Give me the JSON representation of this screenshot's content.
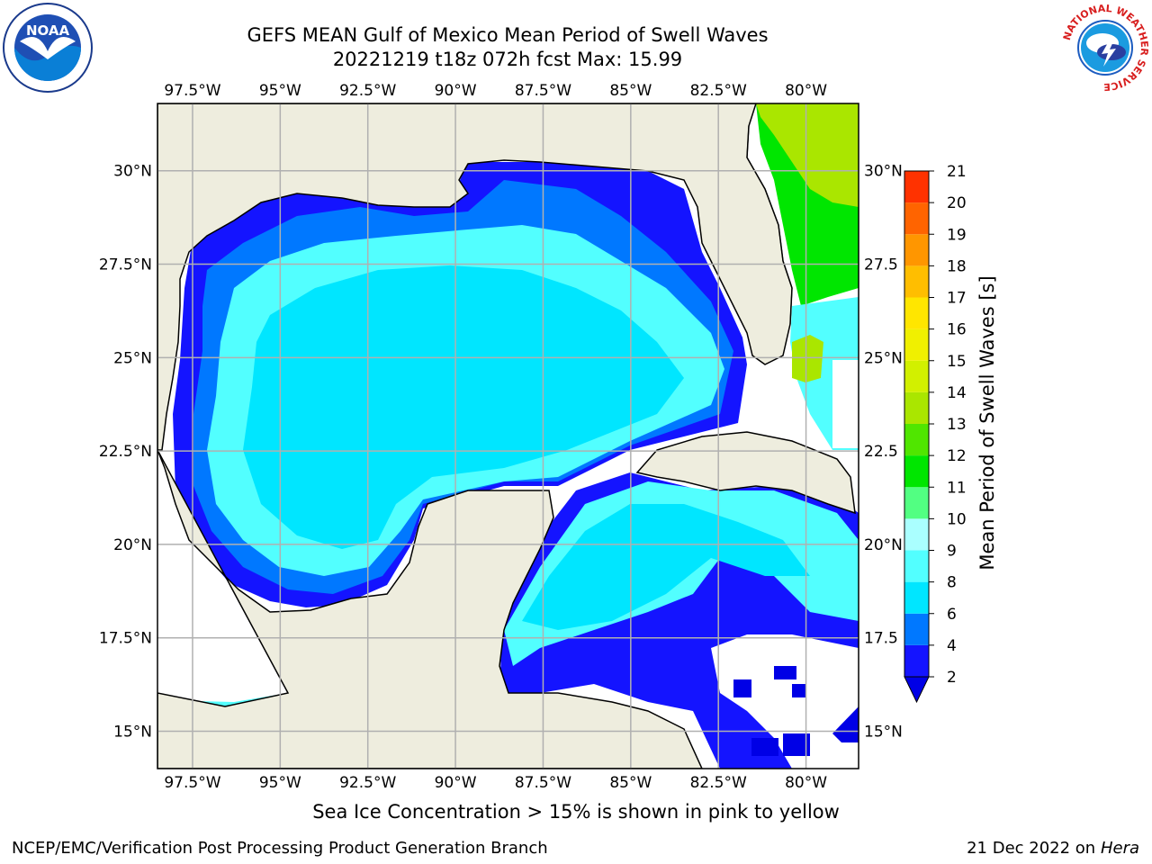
{
  "title": {
    "line1": "GEFS MEAN Gulf of Mexico Mean Period of Swell Waves",
    "line2": "20221219 t18z 072h fcst   Max: 15.99"
  },
  "logos": {
    "left": "noaa-logo",
    "right": "national-weather-service-logo",
    "right_ring_text": "NATIONAL WEATHER SERVICE"
  },
  "map": {
    "projection": "lat-lon",
    "lon_range": [
      -98.5,
      -78.5
    ],
    "lat_range": [
      14.0,
      31.8
    ],
    "lon_ticks": [
      {
        "value": -97.5,
        "label": "97.5°W"
      },
      {
        "value": -95,
        "label": "95°W"
      },
      {
        "value": -92.5,
        "label": "92.5°W"
      },
      {
        "value": -90,
        "label": "90°W"
      },
      {
        "value": -87.5,
        "label": "87.5°W"
      },
      {
        "value": -85,
        "label": "85°W"
      },
      {
        "value": -82.5,
        "label": "82.5°W"
      },
      {
        "value": -80,
        "label": "80°W"
      }
    ],
    "lat_ticks_left": [
      {
        "value": 30,
        "label": "30°N"
      },
      {
        "value": 27.5,
        "label": "27.5°N"
      },
      {
        "value": 25,
        "label": "25°N"
      },
      {
        "value": 22.5,
        "label": "22.5°N"
      },
      {
        "value": 20,
        "label": "20°N"
      },
      {
        "value": 17.5,
        "label": "17.5°N"
      },
      {
        "value": 15,
        "label": "15°N"
      }
    ],
    "lat_ticks_right": [
      {
        "value": 30,
        "label": "30°N"
      },
      {
        "value": 27.5,
        "label": "27.5"
      },
      {
        "value": 25,
        "label": "25°N"
      },
      {
        "value": 22.5,
        "label": "22.5"
      },
      {
        "value": 20,
        "label": "20°N"
      },
      {
        "value": 17.5,
        "label": "17.5"
      },
      {
        "value": 15,
        "label": "15°N"
      }
    ],
    "gridlines": true,
    "colors": {
      "land": "#eeedde",
      "no_data": "#ffffff",
      "grid": "#b0b0b0",
      "coast": "#000000"
    }
  },
  "colorbar": {
    "label": "Mean Period of Swell Waves [s]",
    "ticks": [
      "2",
      "4",
      "6",
      "8",
      "9",
      "10",
      "11",
      "12",
      "13",
      "14",
      "15",
      "16",
      "17",
      "18",
      "19",
      "20",
      "21"
    ],
    "extend": "min",
    "colors": [
      "#1414ff",
      "#0078ff",
      "#00e6ff",
      "#52ffff",
      "#aaffff",
      "#52ff82",
      "#00e600",
      "#50e600",
      "#aae600",
      "#d2f000",
      "#f0f000",
      "#ffe600",
      "#ffbe00",
      "#ff9600",
      "#ff6400",
      "#ff3200",
      "#ff0000"
    ],
    "under_color": "#0000e6"
  },
  "footer": {
    "sea_ice_note": "Sea Ice Concentration > 15% is shown in pink to yellow",
    "credit": "NCEP/EMC/Verification Post Processing Product Generation Branch",
    "date": "21 Dec 2022 on",
    "machine": "Hera"
  }
}
